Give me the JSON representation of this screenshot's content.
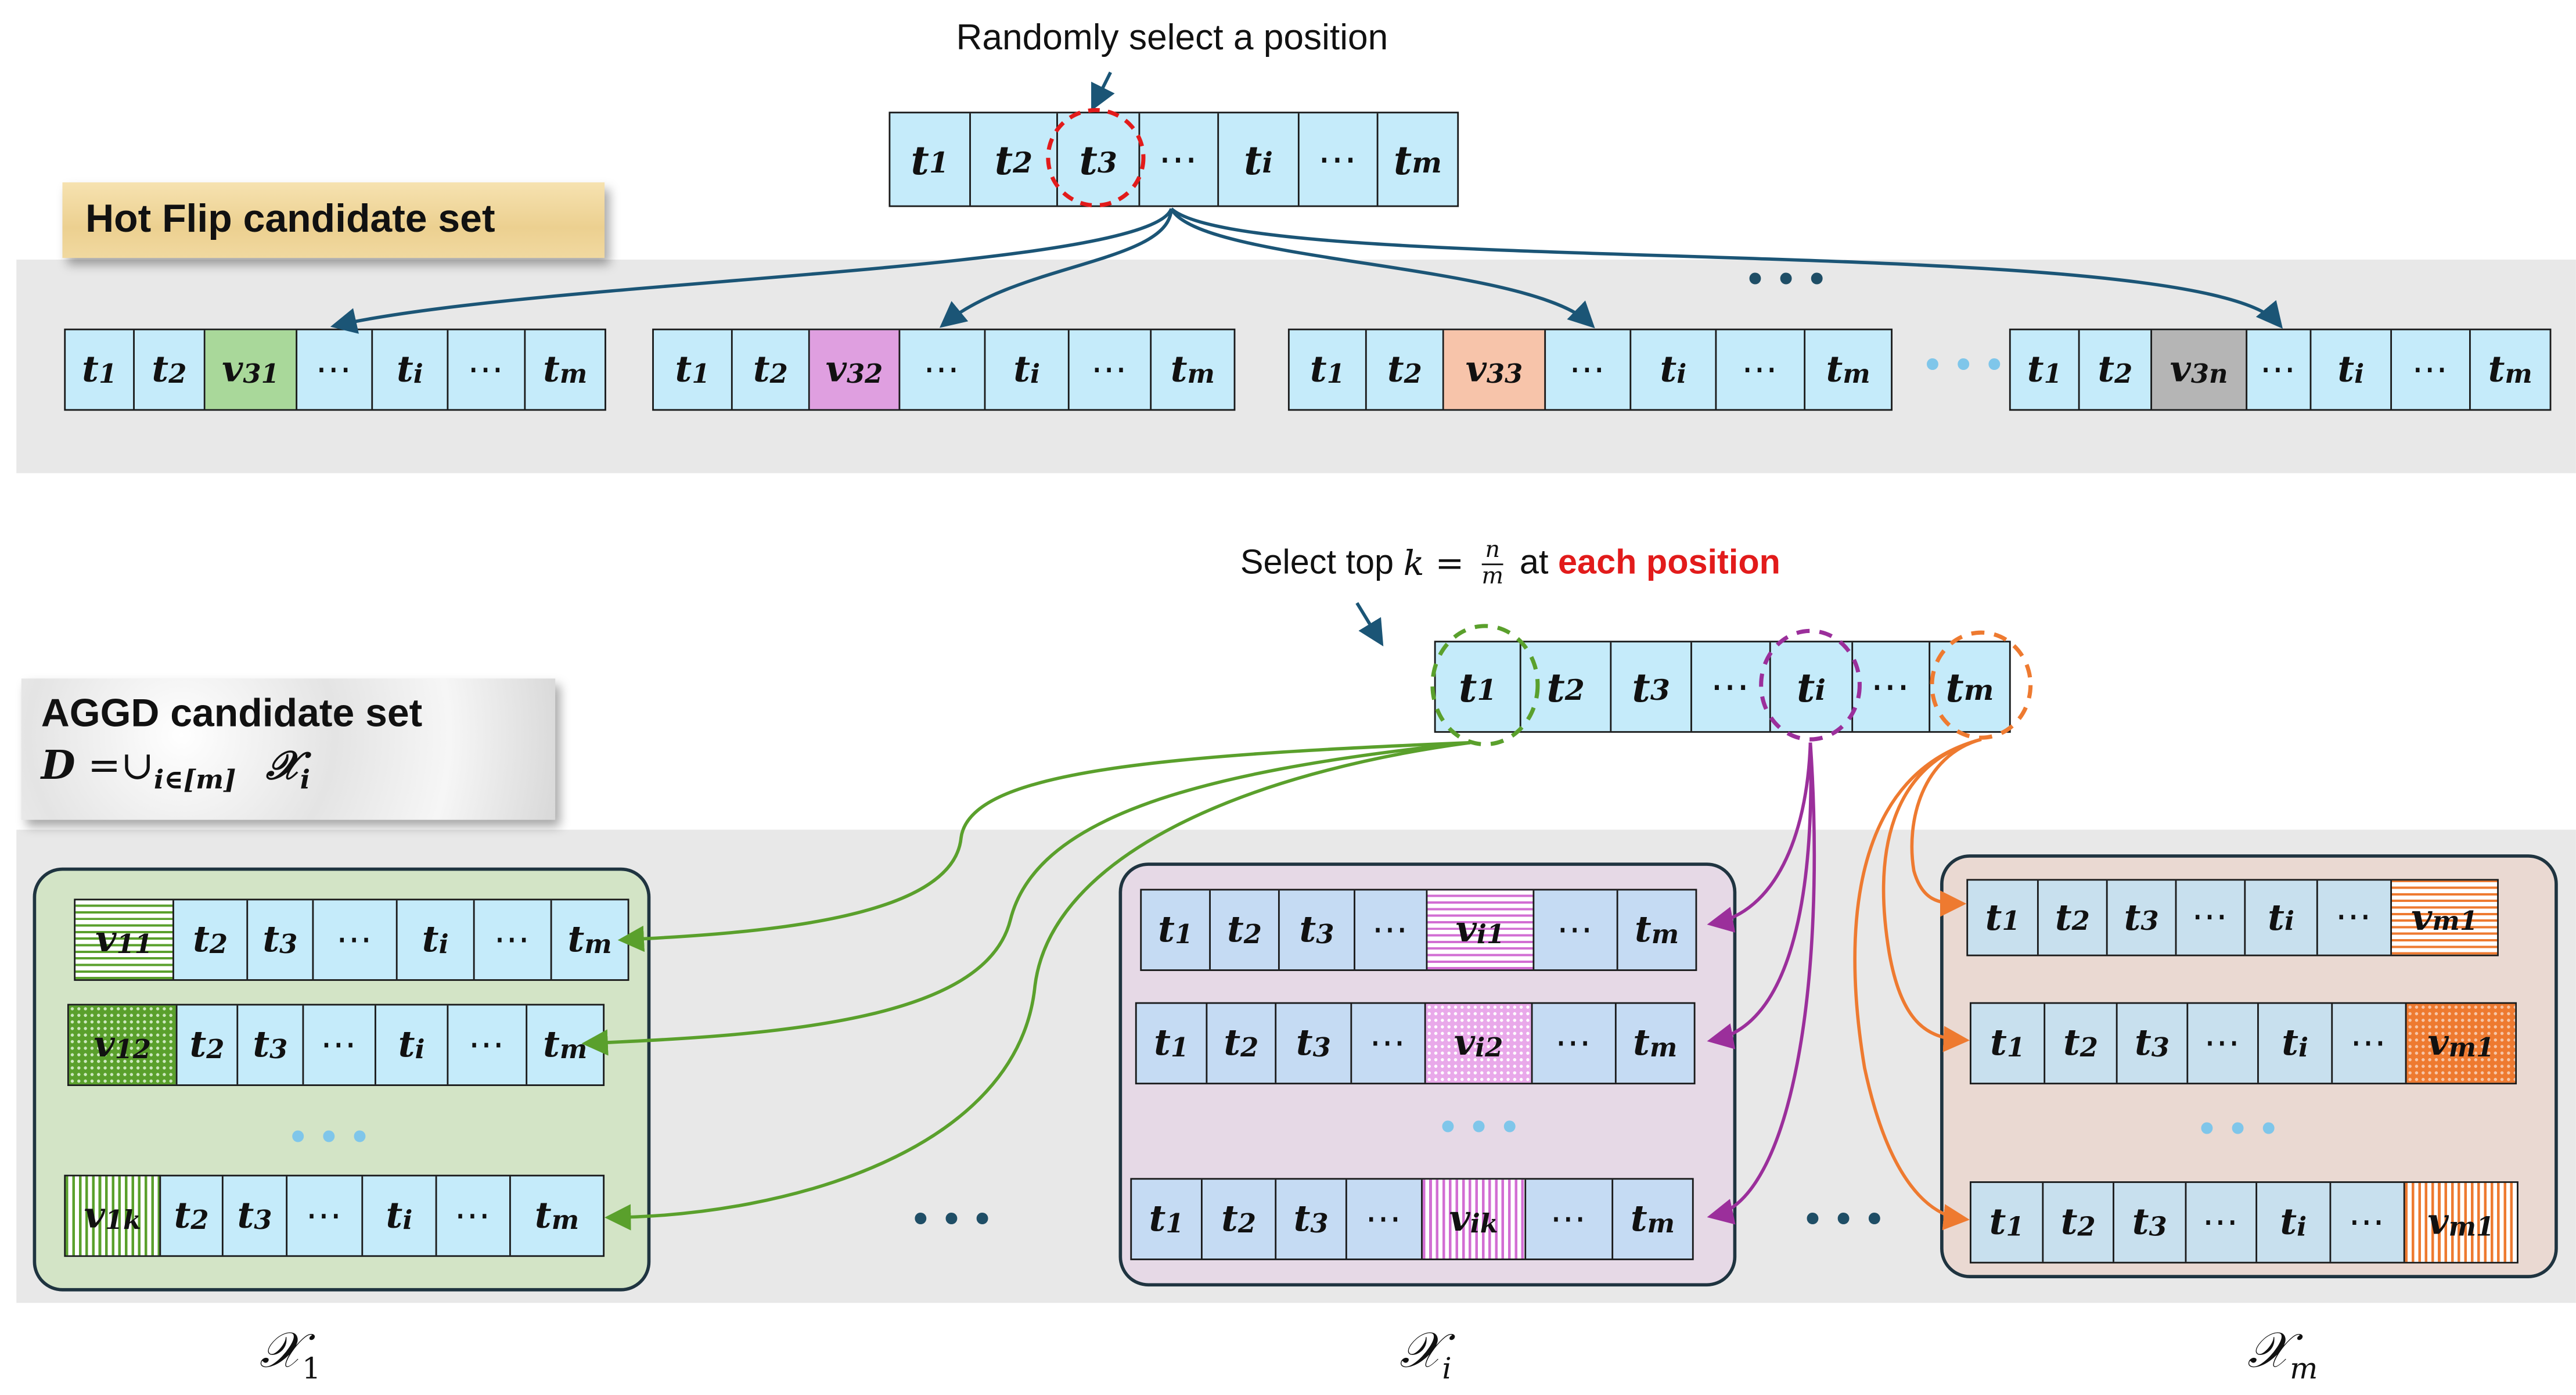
{
  "top": {
    "caption": "Randomly select a position",
    "sequence": [
      "t",
      "t",
      "t",
      "⋯",
      "t",
      "⋯",
      "t"
    ],
    "subs": [
      "1",
      "2",
      "3",
      "",
      "i",
      "",
      "m"
    ]
  },
  "hotflip": {
    "label": "Hot Flip candidate set",
    "rows": [
      {
        "cells": [
          "t",
          "t",
          "v",
          "⋯",
          "t",
          "⋯",
          "t"
        ],
        "subs": [
          "1",
          "2",
          "31",
          "",
          "i",
          "",
          "m"
        ],
        "color": "#a9d89a"
      },
      {
        "cells": [
          "t",
          "t",
          "v",
          "⋯",
          "t",
          "⋯",
          "t"
        ],
        "subs": [
          "1",
          "2",
          "32",
          "",
          "i",
          "",
          "m"
        ],
        "color": "#df9fe0"
      },
      {
        "cells": [
          "t",
          "t",
          "v",
          "⋯",
          "t",
          "⋯",
          "t"
        ],
        "subs": [
          "1",
          "2",
          "33",
          "",
          "i",
          "",
          "m"
        ],
        "color": "#f7c4aa"
      },
      {
        "cells": [
          "t",
          "t",
          "v",
          "⋯",
          "t",
          "⋯",
          "t"
        ],
        "subs": [
          "1",
          "2",
          "3n",
          "",
          "i",
          "",
          "m"
        ],
        "color": "#b5b5b5"
      }
    ]
  },
  "aggd": {
    "label_line1": "AGGD candidate set",
    "label_line2_var": "D",
    "label_line2_rest": " =∪",
    "label_line2_sub": "i∈[m]",
    "label_line2_x": "𝒳",
    "label_line2_xsub": "i",
    "caption_pre": "Select top ",
    "caption_math_k": "k",
    "caption_math_eq": " = ",
    "caption_frac_num": "n",
    "caption_frac_den": "m",
    "caption_mid": " at ",
    "caption_emph": "each position",
    "sequence": [
      "t",
      "t",
      "t",
      "⋯",
      "t",
      "⋯",
      "t"
    ],
    "subs": [
      "1",
      "2",
      "3",
      "",
      "i",
      "",
      "m"
    ],
    "panels": [
      {
        "set_symbol": "𝒳",
        "set_sub": "1",
        "rows": [
          {
            "cells": [
              "v",
              "t",
              "t",
              "⋯",
              "t",
              "⋯",
              "t"
            ],
            "subs": [
              "11",
              "2",
              "3",
              "",
              "i",
              "",
              "m"
            ]
          },
          {
            "cells": [
              "v",
              "t",
              "t",
              "⋯",
              "t",
              "⋯",
              "t"
            ],
            "subs": [
              "12",
              "2",
              "3",
              "",
              "i",
              "",
              "m"
            ]
          },
          {
            "cells": [
              "v",
              "t",
              "t",
              "⋯",
              "t",
              "⋯",
              "t"
            ],
            "subs": [
              "1k",
              "2",
              "3",
              "",
              "i",
              "",
              "m"
            ]
          }
        ]
      },
      {
        "set_symbol": "𝒳",
        "set_sub": "i",
        "rows": [
          {
            "cells": [
              "t",
              "t",
              "t",
              "⋯",
              "v",
              "⋯",
              "t"
            ],
            "subs": [
              "1",
              "2",
              "3",
              "",
              "i1",
              "",
              "m"
            ]
          },
          {
            "cells": [
              "t",
              "t",
              "t",
              "⋯",
              "v",
              "⋯",
              "t"
            ],
            "subs": [
              "1",
              "2",
              "3",
              "",
              "i2",
              "",
              "m"
            ]
          },
          {
            "cells": [
              "t",
              "t",
              "t",
              "⋯",
              "v",
              "⋯",
              "t"
            ],
            "subs": [
              "1",
              "2",
              "3",
              "",
              "ik",
              "",
              "m"
            ]
          }
        ]
      },
      {
        "set_symbol": "𝒳",
        "set_sub": "m",
        "rows": [
          {
            "cells": [
              "t",
              "t",
              "t",
              "⋯",
              "t",
              "⋯",
              "v"
            ],
            "subs": [
              "1",
              "2",
              "3",
              "",
              "i",
              "",
              "m1"
            ]
          },
          {
            "cells": [
              "t",
              "t",
              "t",
              "⋯",
              "t",
              "⋯",
              "v"
            ],
            "subs": [
              "1",
              "2",
              "3",
              "",
              "i",
              "",
              "m1"
            ]
          },
          {
            "cells": [
              "t",
              "t",
              "t",
              "⋯",
              "t",
              "⋯",
              "v"
            ],
            "subs": [
              "1",
              "2",
              "3",
              "",
              "i",
              "",
              "m1"
            ]
          }
        ]
      }
    ]
  },
  "colors": {
    "cell_bg": "#c5ebfa",
    "green": "#5aa02c",
    "purple": "#9b2f9b",
    "orange": "#ee7a30",
    "arrow_blue": "#1b5576",
    "red": "#e21b1b",
    "dots_blue": "#7fc6ea",
    "dots_dark": "#1f4e66"
  },
  "dots": "•••"
}
